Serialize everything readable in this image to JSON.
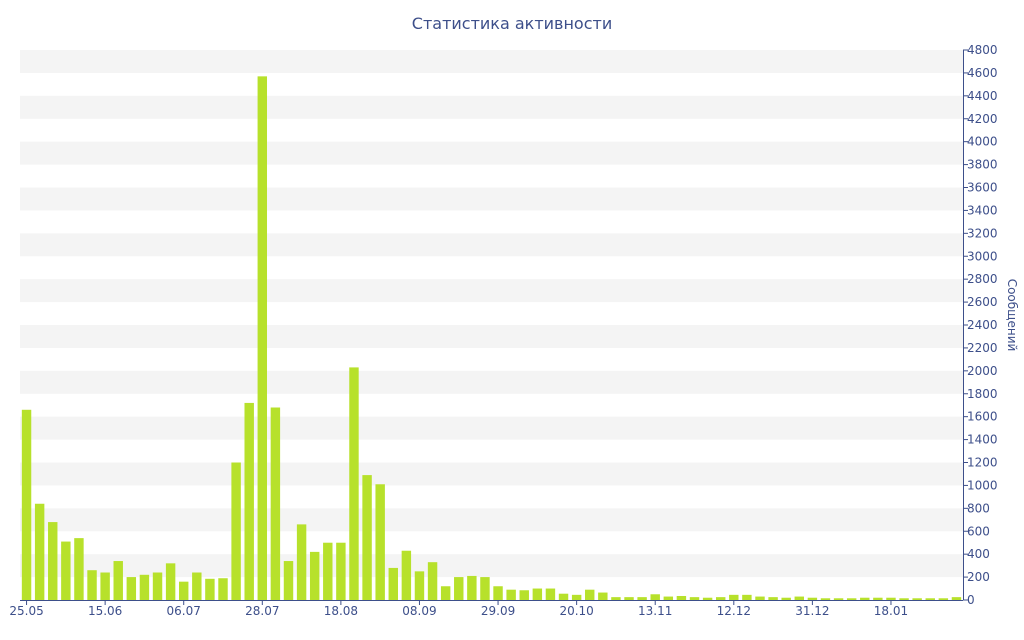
{
  "chart_data": {
    "type": "bar",
    "title": "Статистика активности",
    "xlabel": "",
    "ylabel": "Сообщений",
    "ylim": [
      0,
      4800
    ],
    "y_ticks": [
      0,
      200,
      400,
      600,
      800,
      1000,
      1200,
      1400,
      1600,
      1800,
      2000,
      2200,
      2400,
      2600,
      2800,
      3000,
      3200,
      3400,
      3600,
      3800,
      4000,
      4200,
      4400,
      4600,
      4800
    ],
    "x_tick_labels": [
      {
        "label": "25.05",
        "index": 0
      },
      {
        "label": "15.06",
        "index": 6
      },
      {
        "label": "06.07",
        "index": 12
      },
      {
        "label": "28.07",
        "index": 18
      },
      {
        "label": "18.08",
        "index": 24
      },
      {
        "label": "08.09",
        "index": 30
      },
      {
        "label": "29.09",
        "index": 36
      },
      {
        "label": "20.10",
        "index": 42
      },
      {
        "label": "13.11",
        "index": 48
      },
      {
        "label": "12.12",
        "index": 54
      },
      {
        "label": "31.12",
        "index": 60
      },
      {
        "label": "18.01",
        "index": 66
      }
    ],
    "grid": "horizontal-bands",
    "legend": "none",
    "colors": {
      "bar": "#b7e12b",
      "band": "#f4f4f4",
      "axis": "#3d4f8a"
    },
    "values": [
      1660,
      840,
      680,
      510,
      540,
      260,
      240,
      340,
      200,
      220,
      240,
      320,
      160,
      240,
      185,
      190,
      1200,
      1720,
      4570,
      1680,
      340,
      660,
      420,
      500,
      500,
      2030,
      1090,
      1010,
      280,
      430,
      250,
      330,
      120,
      200,
      210,
      200,
      120,
      90,
      85,
      100,
      100,
      55,
      45,
      90,
      65,
      25,
      25,
      25,
      50,
      30,
      35,
      25,
      20,
      25,
      45,
      45,
      30,
      25,
      20,
      30,
      20,
      15,
      15,
      15,
      20,
      20,
      20,
      15,
      15,
      15,
      15,
      25
    ]
  }
}
